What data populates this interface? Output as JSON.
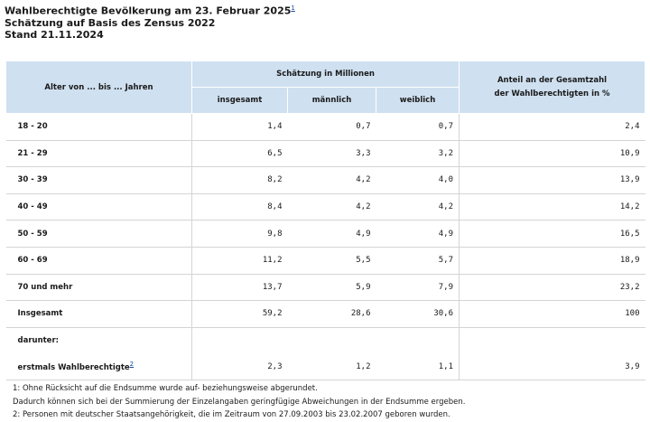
{
  "header": {
    "title": "Wahlberechtigte Bevölkerung am 23. Februar 2025",
    "title_footnote": "1",
    "subtitle": "Schätzung auf Basis des Zensus 2022",
    "stand": "Stand 21.11.2024"
  },
  "table": {
    "col_age": "Alter von ... bis ... Jahren",
    "col_group": "Schätzung in Millionen",
    "col_total": "insgesamt",
    "col_male": "männlich",
    "col_female": "weiblich",
    "col_share_line1": "Anteil an der Gesamtzahl",
    "col_share_line2": "der Wahlberechtigten in %",
    "rows": [
      {
        "label": "18 - 20",
        "total": "1,4",
        "male": "0,7",
        "female": "0,7",
        "share": "2,4"
      },
      {
        "label": "21 - 29",
        "total": "6,5",
        "male": "3,3",
        "female": "3,2",
        "share": "10,9"
      },
      {
        "label": "30 - 39",
        "total": "8,2",
        "male": "4,2",
        "female": "4,0",
        "share": "13,9"
      },
      {
        "label": "40 - 49",
        "total": "8,4",
        "male": "4,2",
        "female": "4,2",
        "share": "14,2"
      },
      {
        "label": "50 - 59",
        "total": "9,8",
        "male": "4,9",
        "female": "4,9",
        "share": "16,5"
      },
      {
        "label": "60 - 69",
        "total": "11,2",
        "male": "5,5",
        "female": "5,7",
        "share": "18,9"
      },
      {
        "label": "70 und mehr",
        "total": "13,7",
        "male": "5,9",
        "female": "7,9",
        "share": "23,2"
      },
      {
        "label": "Insgesamt",
        "total": "59,2",
        "male": "28,6",
        "female": "30,6",
        "share": "100"
      }
    ],
    "darunter_label": "darunter:",
    "first_time": {
      "label": "erstmals Wahlberechtigte",
      "footnote": "2",
      "total": "2,3",
      "male": "1,2",
      "female": "1,1",
      "share": "3,9"
    }
  },
  "footnotes": {
    "note1_line1": "1: Ohne Rücksicht auf die Endsumme wurde auf- beziehungsweise abgerundet.",
    "note1_line2": "Dadurch können sich bei der Summierung der Einzelangaben geringfügige Abweichungen in der Endsumme ergeben.",
    "note2": "2: Personen mit deutscher Staatsangehörigkeit, die im Zeitraum von 27.09.2003 bis 23.02.2007 geboren wurden."
  }
}
